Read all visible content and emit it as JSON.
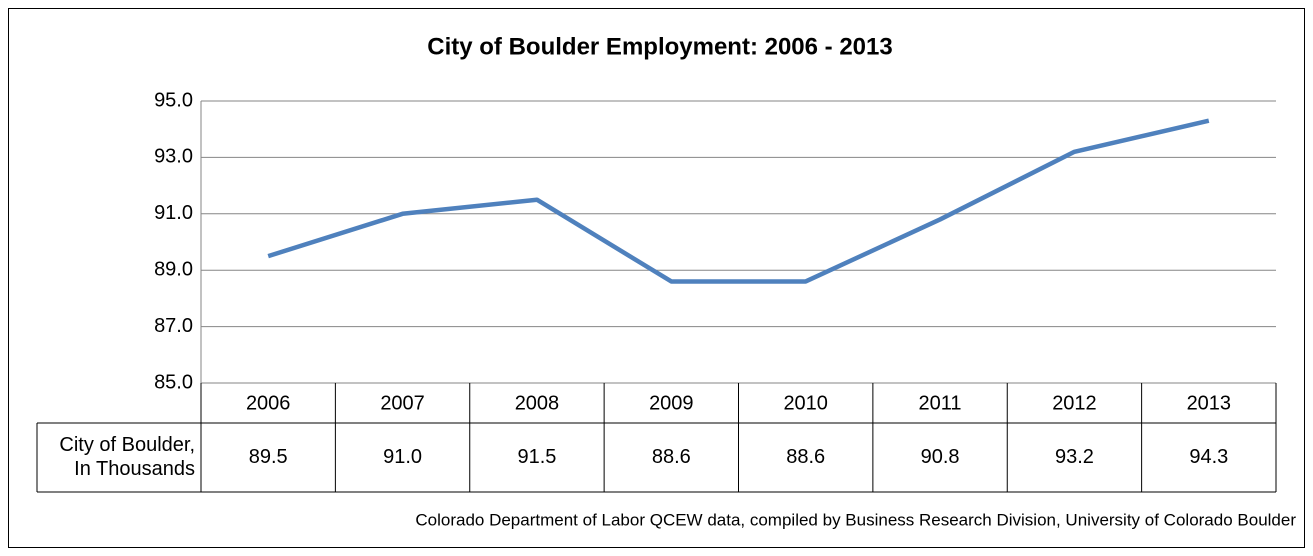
{
  "chart_data": {
    "type": "line",
    "title": "City of Boulder Employment: 2006 - 2013",
    "categories": [
      "2006",
      "2007",
      "2008",
      "2009",
      "2010",
      "2011",
      "2012",
      "2013"
    ],
    "series": [
      {
        "name": "City of Boulder, In Thousands",
        "color": "#4f81bd",
        "values": [
          89.5,
          91.0,
          91.5,
          88.6,
          88.6,
          90.8,
          93.2,
          94.3
        ],
        "value_labels": [
          "89.5",
          "91.0",
          "91.5",
          "88.6",
          "88.6",
          "90.8",
          "93.2",
          "94.3"
        ]
      }
    ],
    "ylim": [
      85,
      95
    ],
    "yticks": [
      {
        "value": 85,
        "label": "85.0"
      },
      {
        "value": 87,
        "label": "87.0"
      },
      {
        "value": 89,
        "label": "89.0"
      },
      {
        "value": 91,
        "label": "91.0"
      },
      {
        "value": 93,
        "label": "93.0"
      },
      {
        "value": 95,
        "label": "95.0"
      }
    ],
    "grid": true,
    "source": "Colorado Department of Labor QCEW data, compiled by Business Research Division, University of Colorado Boulder"
  }
}
